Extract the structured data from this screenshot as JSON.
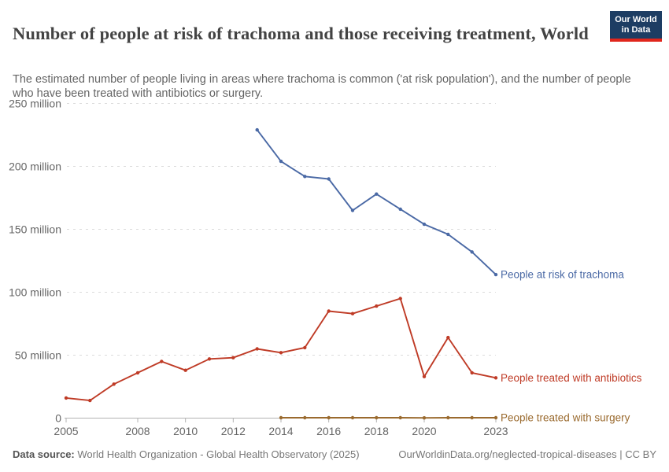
{
  "header": {
    "title": "Number of people at risk of trachoma and those receiving treatment, World",
    "subtitle": "The estimated number of people living in areas where trachoma is common ('at risk population'), and the number of people who have been treated with antibiotics or surgery.",
    "logo": {
      "line1": "Our World",
      "line2": "in Data",
      "bg_color": "#1d3d63",
      "bar_color": "#e0261c"
    }
  },
  "chart_data": {
    "type": "line",
    "title": "Number of people at risk of trachoma and those receiving treatment, World",
    "xlabel": "",
    "ylabel": "",
    "xlim": [
      2005,
      2023
    ],
    "ylim": [
      0,
      250
    ],
    "unit": "million",
    "grid": "horizontal-dashed",
    "legend_position": "right-end-labels",
    "yticks": [
      {
        "value": 0,
        "label": "0"
      },
      {
        "value": 50,
        "label": "50 million"
      },
      {
        "value": 100,
        "label": "100 million"
      },
      {
        "value": 150,
        "label": "150 million"
      },
      {
        "value": 200,
        "label": "200 million"
      },
      {
        "value": 250,
        "label": "250 million"
      }
    ],
    "xticks": [
      2005,
      2008,
      2010,
      2012,
      2014,
      2016,
      2018,
      2020,
      2023
    ],
    "series": [
      {
        "name": "People at risk of trachoma",
        "color": "#4a69a5",
        "x": [
          2013,
          2014,
          2015,
          2016,
          2017,
          2018,
          2019,
          2020,
          2021,
          2022,
          2023
        ],
        "values": [
          229,
          204,
          192,
          190,
          165,
          178,
          166,
          154,
          146,
          132,
          114
        ]
      },
      {
        "name": "People treated with antibiotics",
        "color": "#bf3b26",
        "x": [
          2005,
          2006,
          2007,
          2008,
          2009,
          2010,
          2011,
          2012,
          2013,
          2014,
          2015,
          2016,
          2017,
          2018,
          2019,
          2020,
          2021,
          2022,
          2023
        ],
        "values": [
          16,
          14,
          27,
          36,
          45,
          38,
          47,
          48,
          55,
          52,
          56,
          85,
          83,
          89,
          95,
          33,
          64,
          36,
          32
        ]
      },
      {
        "name": "People treated with surgery",
        "color": "#9a6a2e",
        "x": [
          2014,
          2015,
          2016,
          2017,
          2018,
          2019,
          2020,
          2021,
          2022,
          2023
        ],
        "values": [
          0.3,
          0.3,
          0.3,
          0.3,
          0.3,
          0.3,
          0.2,
          0.3,
          0.3,
          0.3
        ]
      }
    ]
  },
  "footer": {
    "source_label": "Data source:",
    "source_text": "World Health Organization - Global Health Observatory (2025)",
    "url": "OurWorldinData.org/neglected-tropical-diseases",
    "separator": " | ",
    "license": "CC BY"
  }
}
